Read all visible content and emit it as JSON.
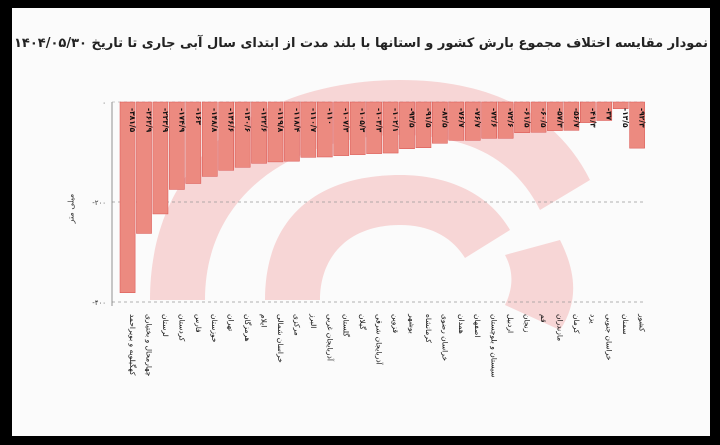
{
  "chart_data": {
    "type": "bar",
    "title": "نمودار مقایسه اختلاف مجموع بارش کشور و استانها با بلند مدت از ابتدای سال آبی جاری تا تاریخ ۱۴۰۴/۰۵/۳۰",
    "ylabel": "میلی متر",
    "xlabel": "",
    "ylim": [
      -400,
      0
    ],
    "yticks": [
      0,
      -200,
      -400
    ],
    "ytick_labels": [
      "۰",
      "-۲۰۰",
      "-۴۰۰"
    ],
    "grid": "dashed-horizontal",
    "categories": [
      "کهگیلویه و بویراحمد",
      "چهارمحال و بختیاری",
      "لرستان",
      "کردستان",
      "فارس",
      "خوزستان",
      "تهران",
      "هرمزگان",
      "ایلام",
      "خراسان شمالی",
      "مرکزی",
      "البرز",
      "آذربایجان غربی",
      "گلستان",
      "گیلان",
      "آذربایجان شرقی",
      "قزوین",
      "بوشهر",
      "کرمانشاه",
      "خراسان رضوی",
      "همدان",
      "اصفهان",
      "سیستان و بلوچستان",
      "اردبیل",
      "زنجان",
      "قم",
      "مازندران",
      "کرمان",
      "یزد",
      "خراسان جنوبی",
      "سمنان",
      "کشور"
    ],
    "values": [
      -381.5,
      -262.9,
      -223.9,
      -174.9,
      -163.0,
      -148.8,
      -136.6,
      -130.6,
      -122.6,
      -119.8,
      -118.4,
      -110.7,
      -110.0,
      -107.3,
      -105.3,
      -103.3,
      -102.1,
      -93.5,
      -91.5,
      -82.5,
      -76.7,
      -76.7,
      -72.6,
      -72.6,
      -61.5,
      -60.5,
      -57.3,
      -56.7,
      -41.3,
      -37.0,
      -13.5,
      -92.3
    ],
    "value_labels": [
      "-۳۸۱/۵",
      "-۲۶۲/۹",
      "-۲۲۳/۹",
      "-۱۷۴/۹",
      "-۱۶۳",
      "-۱۴۸/۸",
      "-۱۳۶/۶",
      "-۱۳۰/۶",
      "-۱۲۲/۶",
      "-۱۱۹/۸",
      "-۱۱۸/۴",
      "-۱۱۰/۷",
      "-۱۱۰",
      "-۱۰۷/۳",
      "-۱۰۵/۳",
      "-۱۰۳/۳",
      "-۱۰۲/۱",
      "-۹۳/۵",
      "-۹۱/۵",
      "-۸۲/۵",
      "-۷۶/۷",
      "-۷۶/۷",
      "-۷۲/۶",
      "-۷۲/۶",
      "-۶۱/۵",
      "-۶۰/۵",
      "-۵۷/۳",
      "-۵۶/۷",
      "-۴۱/۳",
      "-۳۷",
      "-۱۳/۵",
      "-۹۲/۳"
    ],
    "colors": {
      "bar": "#ec8a80",
      "bar_stroke": "#d9534f",
      "label": "#111111",
      "watermark": "#f4b8b8",
      "grid": "#999999"
    }
  }
}
